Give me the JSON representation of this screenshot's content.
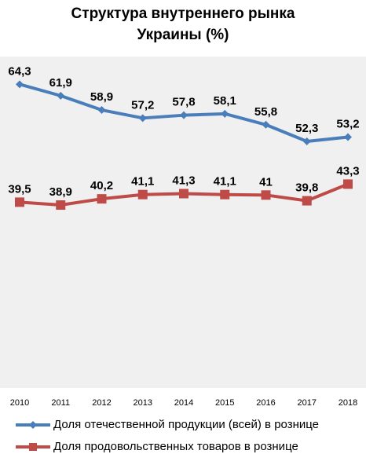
{
  "chart_data": {
    "type": "line",
    "title": [
      "Структура внутреннего рынка",
      "Украины (%)"
    ],
    "xlabel": "",
    "ylabel": "",
    "categories": [
      "2010",
      "2011",
      "2012",
      "2013",
      "2014",
      "2015",
      "2016",
      "2017",
      "2018"
    ],
    "ylim": [
      0,
      70
    ],
    "grid": false,
    "legend_position": "bottom",
    "series": [
      {
        "name": "Доля отечественной продукции (всей) в рознице",
        "values": [
          64.3,
          61.9,
          58.9,
          57.2,
          57.8,
          58.1,
          55.8,
          52.3,
          53.2
        ],
        "labels": [
          "64,3",
          "61,9",
          "58,9",
          "57,2",
          "57,8",
          "58,1",
          "55,8",
          "52,3",
          "53,2"
        ],
        "color": "#4a7ebb",
        "marker": "diamond"
      },
      {
        "name": "Доля продовольственных товаров в рознице",
        "values": [
          39.5,
          38.9,
          40.2,
          41.1,
          41.3,
          41.1,
          41.0,
          39.8,
          43.3
        ],
        "labels": [
          "39,5",
          "38,9",
          "40,2",
          "41,1",
          "41,3",
          "41,1",
          "41",
          "39,8",
          "43,3"
        ],
        "color": "#be4b48",
        "marker": "square"
      }
    ]
  }
}
